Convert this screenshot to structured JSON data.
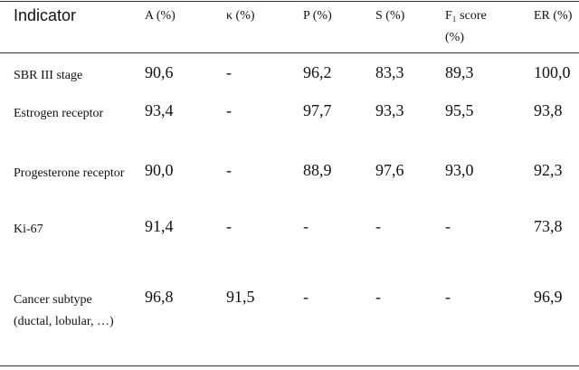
{
  "table": {
    "header": [
      "Indicator",
      "A (%)",
      "κ (%)",
      "P (%)",
      "S (%)",
      "F₁ score (%)",
      "ER (%)"
    ],
    "rows": [
      [
        "SBR III stage",
        "90,6",
        "-",
        "96,2",
        "83,3",
        "89,3",
        "100,0"
      ],
      [
        "Estrogen receptor",
        "93,4",
        "-",
        "97,7",
        "93,3",
        "95,5",
        "93,8"
      ],
      [
        "Progesterone receptor",
        "90,0",
        "-",
        "88,9",
        "97,6",
        "93,0",
        "92,3"
      ],
      [
        "Ki-67",
        "91,4",
        "-",
        "-",
        "-",
        "-",
        "73,8"
      ],
      [
        "Cancer subtype (ductal, lobular, …)",
        "96,8",
        "91,5",
        "-",
        "-",
        "-",
        "96,9"
      ]
    ]
  }
}
